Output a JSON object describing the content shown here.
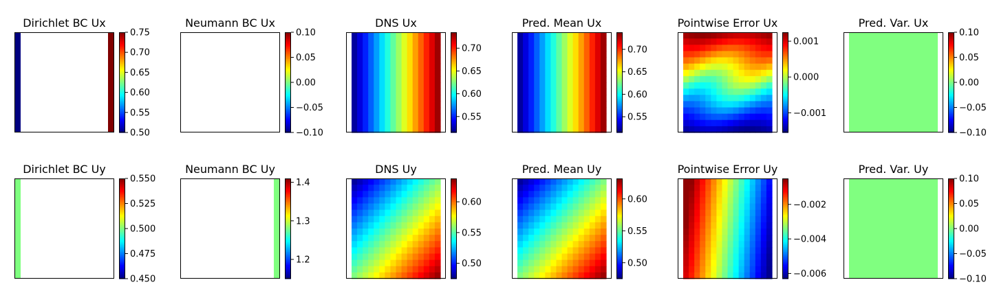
{
  "figure": {
    "rows": [
      "Ux",
      "Uy"
    ],
    "columns": [
      "Dirichlet BC",
      "Neumann BC",
      "DNS",
      "Pred. Mean",
      "Pointwise Error",
      "Pred. Var."
    ]
  },
  "chart_data": [
    {
      "type": "heatmap",
      "title": "Dirichlet BC Ux",
      "field": "dirichlet_left_right",
      "colorbar": {
        "range": [
          0.5,
          0.75
        ],
        "ticks": [
          "0.50",
          "0.55",
          "0.60",
          "0.65",
          "0.70",
          "0.75"
        ],
        "tick_values": [
          0.5,
          0.55,
          0.6,
          0.65,
          0.7,
          0.75
        ]
      },
      "values": {
        "left": 0.5,
        "right": 0.75
      }
    },
    {
      "type": "heatmap",
      "title": "Neumann BC Ux",
      "field": "empty",
      "colorbar": {
        "range": [
          -0.1,
          0.1
        ],
        "ticks": [
          "0.10",
          "0.05",
          "0.00",
          "−0.05",
          "−0.10"
        ],
        "tick_values": [
          0.1,
          0.05,
          0.0,
          -0.05,
          -0.1
        ]
      },
      "values": {}
    },
    {
      "type": "heatmap",
      "title": "DNS Ux",
      "field": "linear_x",
      "colorbar": {
        "range": [
          0.515,
          0.735
        ],
        "ticks": [
          "0.70",
          "0.65",
          "0.60",
          "0.55"
        ],
        "tick_values": [
          0.7,
          0.65,
          0.6,
          0.55
        ]
      },
      "values": {
        "x_min": 0.515,
        "x_max": 0.735
      }
    },
    {
      "type": "heatmap",
      "title": "Pred. Mean Ux",
      "field": "linear_x",
      "colorbar": {
        "range": [
          0.515,
          0.738
        ],
        "ticks": [
          "0.70",
          "0.65",
          "0.60",
          "0.55"
        ],
        "tick_values": [
          0.7,
          0.65,
          0.6,
          0.55
        ]
      },
      "values": {
        "x_min": 0.515,
        "x_max": 0.738
      }
    },
    {
      "type": "heatmap",
      "title": "Pointwise Error Ux",
      "field": "error_ux",
      "colorbar": {
        "range": [
          -0.00155,
          0.00125
        ],
        "ticks": [
          "0.001",
          "0.000",
          "−0.001"
        ],
        "tick_values": [
          0.001,
          0.0,
          -0.001
        ]
      },
      "values": {
        "top": 0.0012,
        "bottom": -0.0015
      }
    },
    {
      "type": "heatmap",
      "title": "Pred. Var. Ux",
      "field": "constant",
      "colorbar": {
        "range": [
          -0.1,
          0.1
        ],
        "ticks": [
          "0.10",
          "0.05",
          "0.00",
          "−0.05",
          "−0.10"
        ],
        "tick_values": [
          0.1,
          0.05,
          0.0,
          -0.05,
          -0.1
        ]
      },
      "values": {
        "constant": 0.0
      }
    },
    {
      "type": "heatmap",
      "title": "Dirichlet BC Uy",
      "field": "dirichlet_left",
      "colorbar": {
        "range": [
          0.45,
          0.55
        ],
        "ticks": [
          "0.550",
          "0.525",
          "0.500",
          "0.475",
          "0.450"
        ],
        "tick_values": [
          0.55,
          0.525,
          0.5,
          0.475,
          0.45
        ]
      },
      "values": {
        "left": 0.5
      }
    },
    {
      "type": "heatmap",
      "title": "Neumann BC Uy",
      "field": "neumann_right",
      "colorbar": {
        "range": [
          1.15,
          1.41
        ],
        "ticks": [
          "1.4",
          "1.3",
          "1.2"
        ],
        "tick_values": [
          1.4,
          1.3,
          1.2
        ]
      },
      "values": {
        "right": 1.28
      }
    },
    {
      "type": "heatmap",
      "title": "DNS Uy",
      "field": "diag",
      "colorbar": {
        "range": [
          0.475,
          0.638
        ],
        "ticks": [
          "0.60",
          "0.55",
          "0.50"
        ],
        "tick_values": [
          0.6,
          0.55,
          0.5
        ]
      },
      "values": {
        "min": 0.475,
        "max": 0.638
      }
    },
    {
      "type": "heatmap",
      "title": "Pred. Mean Uy",
      "field": "diag",
      "colorbar": {
        "range": [
          0.475,
          0.632
        ],
        "ticks": [
          "0.60",
          "0.55",
          "0.50"
        ],
        "tick_values": [
          0.6,
          0.55,
          0.5
        ]
      },
      "values": {
        "min": 0.475,
        "max": 0.632
      }
    },
    {
      "type": "heatmap",
      "title": "Pointwise Error Uy",
      "field": "error_uy",
      "colorbar": {
        "range": [
          -0.0063,
          -0.0005
        ],
        "ticks": [
          "−0.002",
          "−0.004",
          "−0.006"
        ],
        "tick_values": [
          -0.002,
          -0.004,
          -0.006
        ]
      },
      "values": {
        "left": -0.0006,
        "right": -0.0062
      }
    },
    {
      "type": "heatmap",
      "title": "Pred. Var. Uy",
      "field": "constant",
      "colorbar": {
        "range": [
          -0.1,
          0.1
        ],
        "ticks": [
          "0.10",
          "0.05",
          "0.00",
          "−0.05",
          "−0.10"
        ],
        "tick_values": [
          0.1,
          0.05,
          0.0,
          -0.05,
          -0.1
        ]
      },
      "values": {
        "constant": 0.0
      }
    }
  ]
}
